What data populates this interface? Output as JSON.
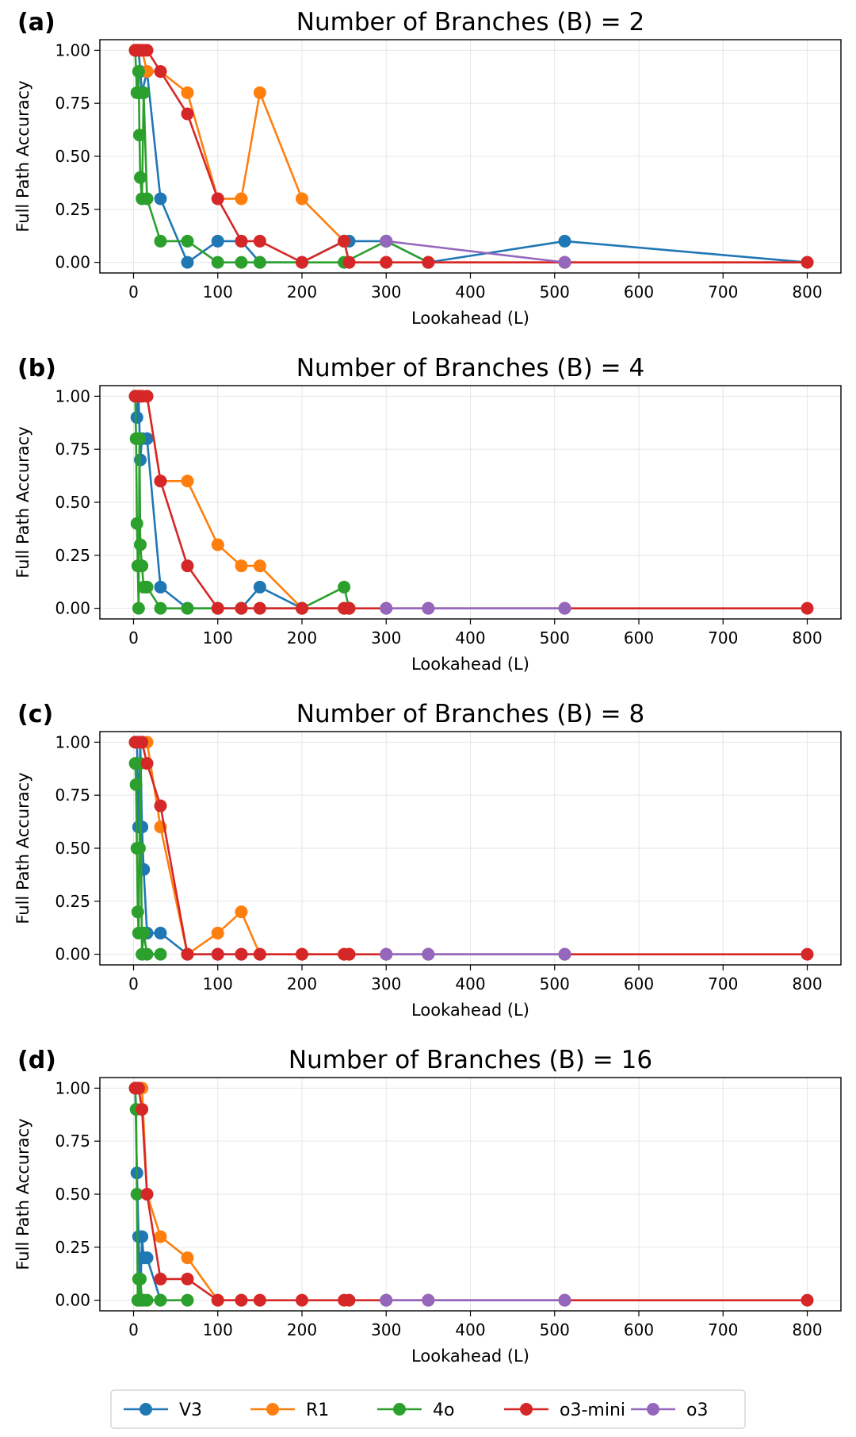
{
  "colors": {
    "V3": "#1f77b4",
    "R1": "#ff7f0e",
    "4o": "#2ca02c",
    "o3-mini": "#d62728",
    "o3": "#9467bd"
  },
  "legend": [
    "V3",
    "R1",
    "4o",
    "o3-mini",
    "o3"
  ],
  "chart_data": [
    {
      "type": "line",
      "panel_label": "(a)",
      "title": "Number of Branches (B) = 2",
      "xlabel": "Lookahead (L)",
      "ylabel": "Full Path Accuracy",
      "xlim": [
        -40,
        840
      ],
      "ylim": [
        -0.05,
        1.05
      ],
      "xticks": [
        "0",
        "100",
        "200",
        "300",
        "400",
        "500",
        "600",
        "700",
        "800"
      ],
      "yticks": [
        "0.00",
        "0.25",
        "0.50",
        "0.75",
        "1.00"
      ],
      "grid": true,
      "series": [
        {
          "name": "V3",
          "points": [
            [
              2,
              1.0
            ],
            [
              4,
              1.0
            ],
            [
              6,
              1.0
            ],
            [
              8,
              0.9
            ],
            [
              10,
              0.8
            ],
            [
              16,
              0.9
            ],
            [
              32,
              0.3
            ],
            [
              64,
              0.0
            ],
            [
              100,
              0.1
            ],
            [
              128,
              0.1
            ],
            [
              150,
              0.0
            ],
            [
              200,
              0.0
            ],
            [
              250,
              0.1
            ],
            [
              256,
              0.1
            ],
            [
              300,
              0.1
            ],
            [
              350,
              0.0
            ],
            [
              512,
              0.1
            ],
            [
              800,
              0.0
            ]
          ]
        },
        {
          "name": "R1",
          "points": [
            [
              2,
              1.0
            ],
            [
              4,
              1.0
            ],
            [
              6,
              1.0
            ],
            [
              8,
              1.0
            ],
            [
              10,
              1.0
            ],
            [
              16,
              0.9
            ],
            [
              32,
              0.9
            ],
            [
              64,
              0.8
            ],
            [
              100,
              0.3
            ],
            [
              128,
              0.3
            ],
            [
              150,
              0.8
            ],
            [
              200,
              0.3
            ],
            [
              250,
              0.1
            ],
            [
              256,
              0.0
            ],
            [
              300,
              0.0
            ],
            [
              350,
              0.0
            ],
            [
              512,
              0.0
            ],
            [
              800,
              0.0
            ]
          ]
        },
        {
          "name": "4o",
          "points": [
            [
              2,
              1.0
            ],
            [
              4,
              0.8
            ],
            [
              6,
              0.9
            ],
            [
              7,
              0.6
            ],
            [
              8,
              0.4
            ],
            [
              10,
              0.3
            ],
            [
              12,
              0.8
            ],
            [
              16,
              0.3
            ],
            [
              32,
              0.1
            ],
            [
              64,
              0.1
            ],
            [
              100,
              0.0
            ],
            [
              128,
              0.0
            ],
            [
              150,
              0.0
            ],
            [
              250,
              0.0
            ],
            [
              300,
              0.1
            ],
            [
              350,
              0.0
            ]
          ]
        },
        {
          "name": "o3-mini",
          "points": [
            [
              2,
              1.0
            ],
            [
              4,
              1.0
            ],
            [
              8,
              1.0
            ],
            [
              12,
              1.0
            ],
            [
              16,
              1.0
            ],
            [
              32,
              0.9
            ],
            [
              64,
              0.7
            ],
            [
              100,
              0.3
            ],
            [
              128,
              0.1
            ],
            [
              150,
              0.1
            ],
            [
              200,
              0.0
            ],
            [
              250,
              0.1
            ],
            [
              256,
              0.0
            ],
            [
              300,
              0.0
            ],
            [
              350,
              0.0
            ],
            [
              512,
              0.0
            ],
            [
              800,
              0.0
            ]
          ]
        },
        {
          "name": "o3",
          "points": [
            [
              300,
              0.1
            ],
            [
              512,
              0.0
            ]
          ]
        }
      ]
    },
    {
      "type": "line",
      "panel_label": "(b)",
      "title": "Number of Branches (B) = 4",
      "xlabel": "Lookahead (L)",
      "ylabel": "Full Path Accuracy",
      "xlim": [
        -40,
        840
      ],
      "ylim": [
        -0.05,
        1.05
      ],
      "xticks": [
        "0",
        "100",
        "200",
        "300",
        "400",
        "500",
        "600",
        "700",
        "800"
      ],
      "yticks": [
        "0.00",
        "0.25",
        "0.50",
        "0.75",
        "1.00"
      ],
      "grid": true,
      "series": [
        {
          "name": "V3",
          "points": [
            [
              2,
              1.0
            ],
            [
              4,
              0.9
            ],
            [
              6,
              1.0
            ],
            [
              8,
              0.7
            ],
            [
              10,
              0.8
            ],
            [
              16,
              0.8
            ],
            [
              32,
              0.1
            ],
            [
              64,
              0.0
            ],
            [
              100,
              0.0
            ],
            [
              128,
              0.0
            ],
            [
              150,
              0.1
            ],
            [
              200,
              0.0
            ],
            [
              250,
              0.0
            ],
            [
              256,
              0.0
            ]
          ]
        },
        {
          "name": "R1",
          "points": [
            [
              2,
              1.0
            ],
            [
              4,
              1.0
            ],
            [
              8,
              1.0
            ],
            [
              16,
              1.0
            ],
            [
              32,
              0.6
            ],
            [
              64,
              0.6
            ],
            [
              100,
              0.3
            ],
            [
              128,
              0.2
            ],
            [
              150,
              0.2
            ],
            [
              200,
              0.0
            ],
            [
              250,
              0.0
            ],
            [
              256,
              0.0
            ]
          ]
        },
        {
          "name": "4o",
          "points": [
            [
              2,
              1.0
            ],
            [
              3,
              0.8
            ],
            [
              4,
              0.4
            ],
            [
              5,
              0.2
            ],
            [
              6,
              0.0
            ],
            [
              7,
              0.8
            ],
            [
              8,
              0.3
            ],
            [
              10,
              0.2
            ],
            [
              12,
              0.1
            ],
            [
              16,
              0.1
            ],
            [
              32,
              0.0
            ],
            [
              64,
              0.0
            ],
            [
              100,
              0.0
            ],
            [
              128,
              0.0
            ],
            [
              150,
              0.0
            ],
            [
              200,
              0.0
            ],
            [
              250,
              0.1
            ],
            [
              256,
              0.0
            ]
          ]
        },
        {
          "name": "o3-mini",
          "points": [
            [
              2,
              1.0
            ],
            [
              6,
              1.0
            ],
            [
              10,
              1.0
            ],
            [
              16,
              1.0
            ],
            [
              32,
              0.6
            ],
            [
              64,
              0.2
            ],
            [
              100,
              0.0
            ],
            [
              128,
              0.0
            ],
            [
              150,
              0.0
            ],
            [
              200,
              0.0
            ],
            [
              250,
              0.0
            ],
            [
              256,
              0.0
            ],
            [
              300,
              0.0
            ],
            [
              350,
              0.0
            ],
            [
              512,
              0.0
            ],
            [
              800,
              0.0
            ]
          ]
        },
        {
          "name": "o3",
          "points": [
            [
              300,
              0.0
            ],
            [
              350,
              0.0
            ],
            [
              512,
              0.0
            ]
          ]
        }
      ]
    },
    {
      "type": "line",
      "panel_label": "(c)",
      "title": "Number of Branches (B) = 8",
      "xlabel": "Lookahead (L)",
      "ylabel": "Full Path Accuracy",
      "xlim": [
        -40,
        840
      ],
      "ylim": [
        -0.05,
        1.05
      ],
      "xticks": [
        "0",
        "100",
        "200",
        "300",
        "400",
        "500",
        "600",
        "700",
        "800"
      ],
      "yticks": [
        "0.00",
        "0.25",
        "0.50",
        "0.75",
        "1.00"
      ],
      "grid": true,
      "series": [
        {
          "name": "V3",
          "points": [
            [
              2,
              1.0
            ],
            [
              4,
              1.0
            ],
            [
              6,
              0.6
            ],
            [
              8,
              1.0
            ],
            [
              10,
              0.6
            ],
            [
              12,
              0.4
            ],
            [
              16,
              0.1
            ],
            [
              32,
              0.1
            ],
            [
              64,
              0.0
            ],
            [
              100,
              0.0
            ],
            [
              128,
              0.0
            ],
            [
              150,
              0.0
            ]
          ]
        },
        {
          "name": "R1",
          "points": [
            [
              2,
              1.0
            ],
            [
              8,
              1.0
            ],
            [
              16,
              1.0
            ],
            [
              32,
              0.6
            ],
            [
              64,
              0.0
            ],
            [
              100,
              0.1
            ],
            [
              128,
              0.2
            ],
            [
              150,
              0.0
            ],
            [
              200,
              0.0
            ],
            [
              250,
              0.0
            ],
            [
              256,
              0.0
            ]
          ]
        },
        {
          "name": "4o",
          "points": [
            [
              2,
              0.9
            ],
            [
              3,
              0.8
            ],
            [
              4,
              0.5
            ],
            [
              5,
              0.2
            ],
            [
              6,
              0.1
            ],
            [
              7,
              0.5
            ],
            [
              8,
              0.9
            ],
            [
              10,
              0.0
            ],
            [
              12,
              0.1
            ],
            [
              16,
              0.0
            ],
            [
              32,
              0.0
            ]
          ]
        },
        {
          "name": "o3-mini",
          "points": [
            [
              2,
              1.0
            ],
            [
              6,
              1.0
            ],
            [
              10,
              1.0
            ],
            [
              16,
              0.9
            ],
            [
              32,
              0.7
            ],
            [
              64,
              0.0
            ],
            [
              100,
              0.0
            ],
            [
              128,
              0.0
            ],
            [
              150,
              0.0
            ],
            [
              200,
              0.0
            ],
            [
              250,
              0.0
            ],
            [
              256,
              0.0
            ],
            [
              300,
              0.0
            ],
            [
              350,
              0.0
            ],
            [
              512,
              0.0
            ],
            [
              800,
              0.0
            ]
          ]
        },
        {
          "name": "o3",
          "points": [
            [
              300,
              0.0
            ],
            [
              350,
              0.0
            ],
            [
              512,
              0.0
            ]
          ]
        }
      ]
    },
    {
      "type": "line",
      "panel_label": "(d)",
      "title": "Number of Branches (B) = 16",
      "xlabel": "Lookahead (L)",
      "ylabel": "Full Path Accuracy",
      "xlim": [
        -40,
        840
      ],
      "ylim": [
        -0.05,
        1.05
      ],
      "xticks": [
        "0",
        "100",
        "200",
        "300",
        "400",
        "500",
        "600",
        "700",
        "800"
      ],
      "yticks": [
        "0.00",
        "0.25",
        "0.50",
        "0.75",
        "1.00"
      ],
      "grid": true,
      "series": [
        {
          "name": "V3",
          "points": [
            [
              2,
              1.0
            ],
            [
              4,
              0.6
            ],
            [
              6,
              0.3
            ],
            [
              8,
              0.0
            ],
            [
              10,
              0.3
            ],
            [
              12,
              0.2
            ],
            [
              16,
              0.2
            ],
            [
              32,
              0.0
            ]
          ]
        },
        {
          "name": "R1",
          "points": [
            [
              2,
              1.0
            ],
            [
              6,
              1.0
            ],
            [
              10,
              1.0
            ],
            [
              16,
              0.5
            ],
            [
              32,
              0.3
            ],
            [
              64,
              0.2
            ],
            [
              100,
              0.0
            ],
            [
              128,
              0.0
            ],
            [
              150,
              0.0
            ]
          ]
        },
        {
          "name": "4o",
          "points": [
            [
              2,
              1.0
            ],
            [
              3,
              0.9
            ],
            [
              4,
              0.5
            ],
            [
              5,
              0.0
            ],
            [
              6,
              0.1
            ],
            [
              7,
              0.0
            ],
            [
              8,
              0.1
            ],
            [
              10,
              0.0
            ],
            [
              12,
              0.0
            ],
            [
              16,
              0.0
            ],
            [
              32,
              0.0
            ],
            [
              64,
              0.0
            ]
          ]
        },
        {
          "name": "o3-mini",
          "points": [
            [
              2,
              1.0
            ],
            [
              6,
              1.0
            ],
            [
              10,
              0.9
            ],
            [
              16,
              0.5
            ],
            [
              32,
              0.1
            ],
            [
              64,
              0.1
            ],
            [
              100,
              0.0
            ],
            [
              128,
              0.0
            ],
            [
              150,
              0.0
            ],
            [
              200,
              0.0
            ],
            [
              250,
              0.0
            ],
            [
              256,
              0.0
            ],
            [
              300,
              0.0
            ],
            [
              350,
              0.0
            ],
            [
              512,
              0.0
            ],
            [
              800,
              0.0
            ]
          ]
        },
        {
          "name": "o3",
          "points": [
            [
              300,
              0.0
            ],
            [
              350,
              0.0
            ],
            [
              512,
              0.0
            ]
          ]
        }
      ]
    }
  ]
}
